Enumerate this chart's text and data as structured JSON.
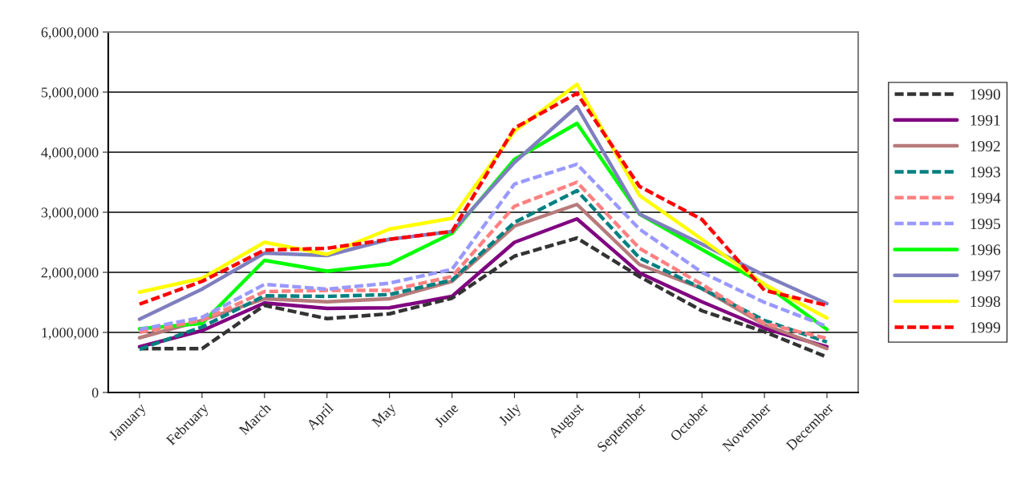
{
  "chart_data": {
    "type": "line",
    "categories": [
      "January",
      "February",
      "March",
      "April",
      "May",
      "June",
      "July",
      "August",
      "September",
      "October",
      "November",
      "December"
    ],
    "ylim": [
      0,
      6000000
    ],
    "yticks": [
      {
        "value": 0,
        "label": "0"
      },
      {
        "value": 1000000,
        "label": "1,000,000"
      },
      {
        "value": 2000000,
        "label": "2,000,000"
      },
      {
        "value": 3000000,
        "label": "3,000,000"
      },
      {
        "value": 4000000,
        "label": "4,000,000"
      },
      {
        "value": 5000000,
        "label": "5,000,000"
      },
      {
        "value": 6000000,
        "label": "6,000,000"
      }
    ],
    "grid": "y",
    "legend": "right",
    "marker": "none",
    "series": [
      {
        "name": "1990",
        "color": "#333333",
        "line_style": "dashed",
        "values": [
          730000,
          730000,
          1450000,
          1230000,
          1310000,
          1570000,
          2270000,
          2570000,
          1930000,
          1360000,
          1010000,
          590000
        ]
      },
      {
        "name": "1991",
        "color": "#800080",
        "line_style": "solid",
        "values": [
          760000,
          1030000,
          1490000,
          1400000,
          1410000,
          1600000,
          2500000,
          2890000,
          1990000,
          1510000,
          1070000,
          760000
        ]
      },
      {
        "name": "1992",
        "color": "#b77b7b",
        "line_style": "solid",
        "values": [
          910000,
          1200000,
          1560000,
          1510000,
          1560000,
          1850000,
          2770000,
          3130000,
          2130000,
          1730000,
          1130000,
          730000
        ]
      },
      {
        "name": "1993",
        "color": "#008080",
        "line_style": "dashed",
        "values": [
          720000,
          1090000,
          1610000,
          1600000,
          1630000,
          1870000,
          2830000,
          3360000,
          2240000,
          1730000,
          1200000,
          840000
        ]
      },
      {
        "name": "1994",
        "color": "#ff8080",
        "line_style": "dashed",
        "values": [
          1000000,
          1200000,
          1680000,
          1700000,
          1700000,
          1930000,
          3100000,
          3500000,
          2400000,
          1800000,
          1150000,
          900000
        ]
      },
      {
        "name": "1995",
        "color": "#9999ff",
        "line_style": "dashed",
        "values": [
          1050000,
          1250000,
          1800000,
          1720000,
          1820000,
          2050000,
          3470000,
          3800000,
          2720000,
          2000000,
          1500000,
          1100000
        ]
      },
      {
        "name": "1996",
        "color": "#00ff00",
        "line_style": "solid",
        "values": [
          1060000,
          1150000,
          2200000,
          2020000,
          2140000,
          2650000,
          3880000,
          4480000,
          2970000,
          2380000,
          1800000,
          1050000
        ]
      },
      {
        "name": "1997",
        "color": "#7f7fbf",
        "line_style": "solid",
        "values": [
          1220000,
          1720000,
          2320000,
          2280000,
          2550000,
          2680000,
          3830000,
          4760000,
          2970000,
          2470000,
          1950000,
          1480000
        ]
      },
      {
        "name": "1998",
        "color": "#ffff00",
        "line_style": "solid",
        "values": [
          1670000,
          1900000,
          2500000,
          2300000,
          2720000,
          2900000,
          4350000,
          5130000,
          3280000,
          2550000,
          1800000,
          1240000
        ]
      },
      {
        "name": "1999",
        "color": "#ff0000",
        "line_style": "dashed",
        "values": [
          1470000,
          1850000,
          2370000,
          2400000,
          2550000,
          2680000,
          4400000,
          4980000,
          3430000,
          2880000,
          1700000,
          1450000
        ]
      }
    ]
  }
}
